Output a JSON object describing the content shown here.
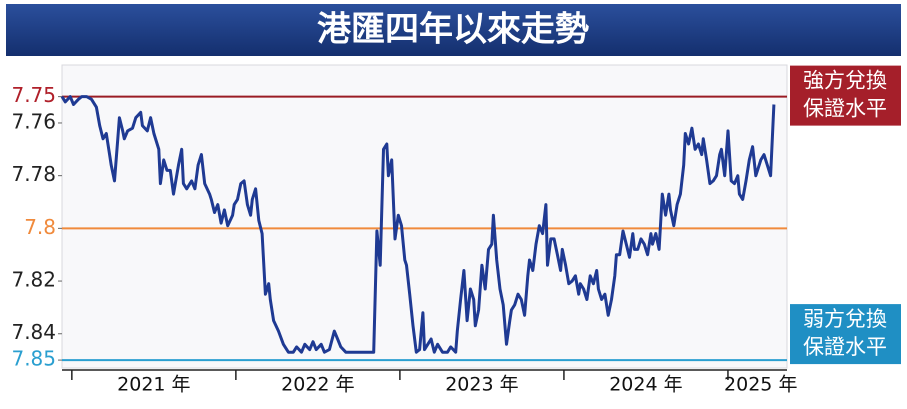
{
  "chart_data": {
    "type": "line",
    "title": "港匯四年以來走勢",
    "color": "#1f3a93",
    "y_inverted": true,
    "ylim": [
      7.738,
      7.853
    ],
    "yticks": [
      7.75,
      7.76,
      7.78,
      7.8,
      7.82,
      7.84,
      7.85
    ],
    "ytick_colors": [
      "#b0202a",
      "#222222",
      "#222222",
      "#f08a3c",
      "#222222",
      "#222222",
      "#2a9fd0"
    ],
    "reference_lines": [
      {
        "value": 7.75,
        "color": "#9a1c24"
      },
      {
        "value": 7.8,
        "color": "#f08a3c"
      },
      {
        "value": 7.85,
        "color": "#2a9fd0"
      }
    ],
    "annotations": [
      {
        "lines": [
          "強方兌換",
          "保證水平"
        ],
        "color": "#a51f2a",
        "anchor": 7.75
      },
      {
        "lines": [
          "弱方兌換",
          "保證水平"
        ],
        "color": "#1f8fc4",
        "anchor": 7.85
      }
    ],
    "xlim": [
      2020.94,
      2025.36
    ],
    "x_boundaries": [
      2021,
      2022,
      2023,
      2024,
      2025
    ],
    "xticks": [
      {
        "value": 2021.5,
        "label": "2021 年"
      },
      {
        "value": 2022.5,
        "label": "2022 年"
      },
      {
        "value": 2023.5,
        "label": "2023 年"
      },
      {
        "value": 2024.5,
        "label": "2024 年"
      },
      {
        "value": 2025.2,
        "label": "2025 年"
      }
    ],
    "x": [
      2020.94,
      2020.96,
      2020.99,
      2021.01,
      2021.04,
      2021.06,
      2021.09,
      2021.12,
      2021.15,
      2021.17,
      2021.19,
      2021.21,
      2021.23,
      2021.24,
      2021.26,
      2021.28,
      2021.29,
      2021.31,
      2021.32,
      2021.34,
      2021.37,
      2021.39,
      2021.42,
      2021.43,
      2021.46,
      2021.48,
      2021.5,
      2021.53,
      2021.54,
      2021.56,
      2021.58,
      2021.6,
      2021.62,
      2021.65,
      2021.67,
      2021.68,
      2021.7,
      2021.73,
      2021.75,
      2021.77,
      2021.79,
      2021.81,
      2021.84,
      2021.85,
      2021.87,
      2021.89,
      2021.91,
      2021.93,
      2021.95,
      2021.98,
      2021.99,
      2022.01,
      2022.03,
      2022.05,
      2022.07,
      2022.09,
      2022.1,
      2022.12,
      2022.14,
      2022.16,
      2022.18,
      2022.2,
      2022.21,
      2022.23,
      2022.26,
      2022.29,
      2022.32,
      2022.35,
      2022.37,
      2022.4,
      2022.42,
      2022.45,
      2022.47,
      2022.49,
      2022.52,
      2022.54,
      2022.57,
      2022.6,
      2022.62,
      2022.64,
      2022.67,
      2022.84,
      2022.86,
      2022.88,
      2022.9,
      2022.92,
      2022.93,
      2022.95,
      2022.97,
      2022.99,
      2023.01,
      2023.03,
      2023.04,
      2023.06,
      2023.08,
      2023.1,
      2023.12,
      2023.14,
      2023.15,
      2023.17,
      2023.19,
      2023.21,
      2023.23,
      2023.26,
      2023.29,
      2023.31,
      2023.34,
      2023.35,
      2023.37,
      2023.39,
      2023.41,
      2023.43,
      2023.45,
      2023.46,
      2023.48,
      2023.5,
      2023.52,
      2023.54,
      2023.56,
      2023.57,
      2023.59,
      2023.61,
      2023.63,
      2023.65,
      2023.67,
      2023.68,
      2023.7,
      2023.72,
      2023.74,
      2023.76,
      2023.78,
      2023.79,
      2023.81,
      2023.83,
      2023.85,
      2023.87,
      2023.89,
      2023.9,
      2023.92,
      2023.94,
      2023.96,
      2023.98,
      2023.99,
      2024.01,
      2024.03,
      2024.05,
      2024.07,
      2024.09,
      2024.1,
      2024.12,
      2024.14,
      2024.16,
      2024.18,
      2024.2,
      2024.21,
      2024.23,
      2024.25,
      2024.27,
      2024.29,
      2024.31,
      2024.32,
      2024.34,
      2024.36,
      2024.38,
      2024.4,
      2024.42,
      2024.43,
      2024.45,
      2024.47,
      2024.49,
      2024.51,
      2024.53,
      2024.54,
      2024.56,
      2024.58,
      2024.6,
      2024.62,
      2024.64,
      2024.65,
      2024.67,
      2024.69,
      2024.71,
      2024.73,
      2024.74,
      2024.76,
      2024.78,
      2024.8,
      2024.82,
      2024.84,
      2024.85,
      2024.87,
      2024.89,
      2024.91,
      2024.93,
      2024.95,
      2024.96,
      2024.98,
      2025.0,
      2025.02,
      2025.04,
      2025.06,
      2025.07,
      2025.09,
      2025.11,
      2025.13,
      2025.15,
      2025.17,
      2025.18,
      2025.2,
      2025.22,
      2025.24,
      2025.26,
      2025.28
    ],
    "values": [
      7.75,
      7.752,
      7.75,
      7.753,
      7.751,
      7.75,
      7.75,
      7.751,
      7.754,
      7.761,
      7.766,
      7.764,
      7.772,
      7.776,
      7.782,
      7.766,
      7.758,
      7.763,
      7.766,
      7.763,
      7.762,
      7.758,
      7.756,
      7.761,
      7.763,
      7.758,
      7.764,
      7.77,
      7.783,
      7.774,
      7.778,
      7.778,
      7.787,
      7.776,
      7.77,
      7.783,
      7.785,
      7.782,
      7.785,
      7.776,
      7.772,
      7.783,
      7.787,
      7.789,
      7.794,
      7.791,
      7.798,
      7.793,
      7.799,
      7.795,
      7.791,
      7.789,
      7.783,
      7.782,
      7.791,
      7.795,
      7.789,
      7.785,
      7.797,
      7.802,
      7.825,
      7.821,
      7.827,
      7.835,
      7.839,
      7.844,
      7.847,
      7.847,
      7.845,
      7.847,
      7.844,
      7.846,
      7.843,
      7.846,
      7.844,
      7.847,
      7.846,
      7.839,
      7.842,
      7.845,
      7.847,
      7.847,
      7.801,
      7.814,
      7.77,
      7.768,
      7.78,
      7.774,
      7.804,
      7.795,
      7.799,
      7.812,
      7.814,
      7.825,
      7.837,
      7.847,
      7.846,
      7.832,
      7.846,
      7.844,
      7.842,
      7.847,
      7.844,
      7.847,
      7.847,
      7.845,
      7.847,
      7.839,
      7.827,
      7.816,
      7.835,
      7.823,
      7.827,
      7.837,
      7.831,
      7.814,
      7.823,
      7.808,
      7.806,
      7.795,
      7.812,
      7.823,
      7.829,
      7.844,
      7.835,
      7.831,
      7.829,
      7.825,
      7.827,
      7.833,
      7.818,
      7.812,
      7.816,
      7.806,
      7.799,
      7.802,
      7.791,
      7.814,
      7.804,
      7.804,
      7.81,
      7.816,
      7.808,
      7.814,
      7.821,
      7.82,
      7.818,
      7.825,
      7.821,
      7.823,
      7.827,
      7.818,
      7.821,
      7.816,
      7.823,
      7.827,
      7.825,
      7.833,
      7.827,
      7.818,
      7.81,
      7.81,
      7.801,
      7.806,
      7.811,
      7.802,
      7.808,
      7.808,
      7.804,
      7.806,
      7.81,
      7.802,
      7.806,
      7.802,
      7.808,
      7.787,
      7.795,
      7.787,
      7.793,
      7.799,
      7.791,
      7.787,
      7.776,
      7.764,
      7.768,
      7.762,
      7.77,
      7.768,
      7.772,
      7.766,
      7.774,
      7.783,
      7.782,
      7.78,
      7.772,
      7.77,
      7.78,
      7.763,
      7.782,
      7.783,
      7.78,
      7.787,
      7.789,
      7.782,
      7.774,
      7.769,
      7.78,
      7.778,
      7.774,
      7.772,
      7.776,
      7.78,
      7.753
    ]
  }
}
